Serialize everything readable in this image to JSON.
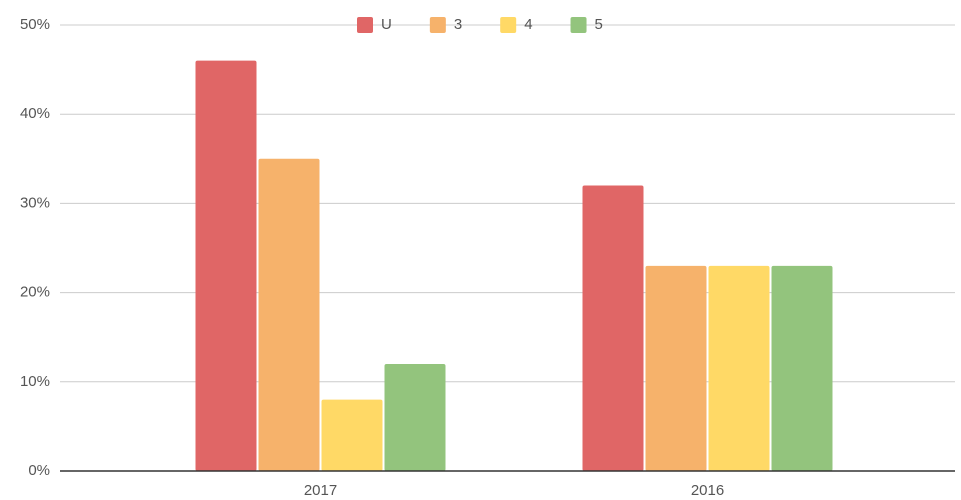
{
  "chart_data": {
    "type": "bar",
    "categories": [
      "2017",
      "2016"
    ],
    "series": [
      {
        "name": "U",
        "color": "#e06666",
        "values": [
          46,
          32
        ]
      },
      {
        "name": "3",
        "color": "#f6b26b",
        "values": [
          35,
          23
        ]
      },
      {
        "name": "4",
        "color": "#ffd966",
        "values": [
          8,
          23
        ]
      },
      {
        "name": "5",
        "color": "#93c47d",
        "values": [
          12,
          23
        ]
      }
    ],
    "ylim": [
      0,
      50
    ],
    "yticks": [
      {
        "value": 0,
        "label": "0%"
      },
      {
        "value": 10,
        "label": "10%"
      },
      {
        "value": 20,
        "label": "20%"
      },
      {
        "value": 30,
        "label": "30%"
      },
      {
        "value": 40,
        "label": "40%"
      },
      {
        "value": 50,
        "label": "50%"
      }
    ],
    "grid": true,
    "legend": "top"
  }
}
